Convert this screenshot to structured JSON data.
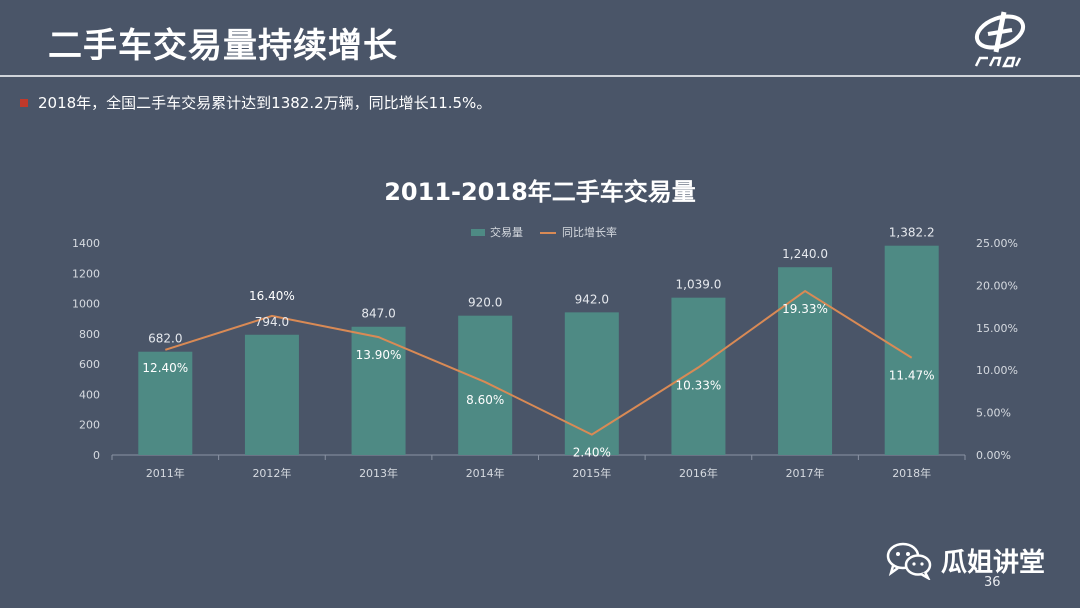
{
  "slide": {
    "title": "二手车交易量持续增长",
    "bullet": "2018年，全国二手车交易累计达到1382.2万辆，同比增长11.5%。",
    "page_number": "36",
    "brand": "瓜姐讲堂",
    "logo_icon": "cada-logo-icon",
    "wechat_icon": "wechat-icon"
  },
  "chart_data": {
    "type": "bar",
    "title": "2011-2018年二手车交易量",
    "categories": [
      "2011年",
      "2012年",
      "2013年",
      "2014年",
      "2015年",
      "2016年",
      "2017年",
      "2018年"
    ],
    "series": [
      {
        "name": "交易量",
        "type": "bar",
        "axis": "left",
        "color": "#4e8a84",
        "values": [
          682.0,
          794.0,
          847.0,
          920.0,
          942.0,
          1039.0,
          1240.0,
          1382.2
        ],
        "labels": [
          "682.0",
          "794.0",
          "847.0",
          "920.0",
          "942.0",
          "1,039.0",
          "1,240.0",
          "1,382.2"
        ]
      },
      {
        "name": "同比增长率",
        "type": "line",
        "axis": "right",
        "color": "#d98a55",
        "values": [
          12.4,
          16.4,
          13.9,
          8.6,
          2.4,
          10.33,
          19.33,
          11.47
        ],
        "labels": [
          "12.40%",
          "16.40%",
          "13.90%",
          "8.60%",
          "2.40%",
          "10.33%",
          "19.33%",
          "11.47%"
        ]
      }
    ],
    "y_left": {
      "ylim": [
        0,
        1400
      ],
      "ticks": [
        "0",
        "200",
        "400",
        "600",
        "800",
        "1000",
        "1200",
        "1400"
      ]
    },
    "y_right": {
      "ylim": [
        0,
        25
      ],
      "ticks": [
        "0.00%",
        "5.00%",
        "10.00%",
        "15.00%",
        "20.00%",
        "25.00%"
      ]
    },
    "grid": false,
    "legend": "top-center"
  }
}
